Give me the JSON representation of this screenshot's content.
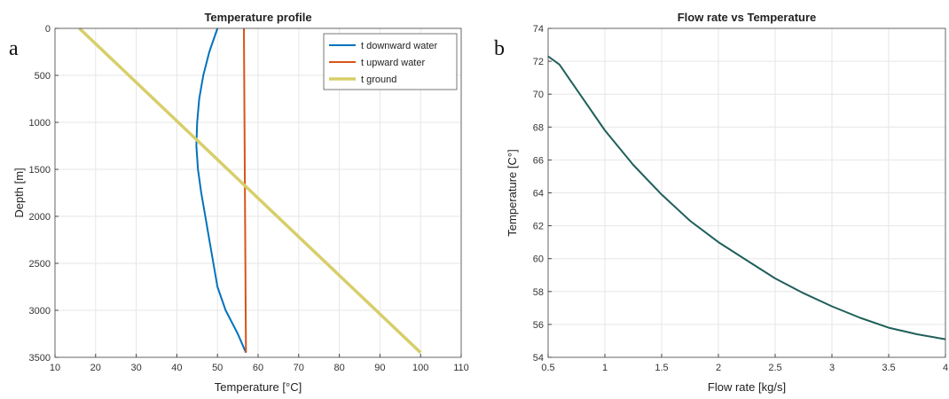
{
  "panels": {
    "a": "a",
    "b": "b"
  },
  "chart_data": [
    {
      "type": "line",
      "title": "Temperature profile",
      "xlabel": "Temperature [°C]",
      "ylabel": "Depth [m]",
      "xlim": [
        10,
        110
      ],
      "ylim": [
        0,
        3500
      ],
      "y_reversed": true,
      "grid": true,
      "legend_position": "top-right",
      "x_ticks": [
        10,
        20,
        30,
        40,
        50,
        60,
        70,
        80,
        90,
        100,
        110
      ],
      "y_ticks": [
        0,
        500,
        1000,
        1500,
        2000,
        2500,
        3000,
        3500
      ],
      "series": [
        {
          "name": "t downward water",
          "color": "#0072BD",
          "points": [
            [
              50,
              0
            ],
            [
              48,
              250
            ],
            [
              46.5,
              500
            ],
            [
              45.5,
              750
            ],
            [
              45,
              1000
            ],
            [
              44.8,
              1250
            ],
            [
              45.2,
              1500
            ],
            [
              46,
              1750
            ],
            [
              47,
              2000
            ],
            [
              48,
              2250
            ],
            [
              49,
              2500
            ],
            [
              50,
              2750
            ],
            [
              52,
              3000
            ],
            [
              55,
              3250
            ],
            [
              57,
              3450
            ]
          ]
        },
        {
          "name": "t upward water",
          "color": "#D95319",
          "points": [
            [
              56.5,
              0
            ],
            [
              57,
              3450
            ]
          ]
        },
        {
          "name": "t ground",
          "color": "#D8CE6A",
          "points": [
            [
              16,
              0
            ],
            [
              100,
              3450
            ]
          ]
        }
      ]
    },
    {
      "type": "line",
      "title": "Flow rate vs Temperature",
      "xlabel": "Flow rate [kg/s]",
      "ylabel": "Temperature [C°]",
      "xlim": [
        0.5,
        4
      ],
      "ylim": [
        54,
        74
      ],
      "grid": true,
      "x_ticks": [
        0.5,
        1,
        1.5,
        2,
        2.5,
        3,
        3.5,
        4
      ],
      "y_ticks": [
        54,
        56,
        58,
        60,
        62,
        64,
        66,
        68,
        70,
        72,
        74
      ],
      "series": [
        {
          "color": "#1f5f5a",
          "points": [
            [
              0.5,
              72.3
            ],
            [
              0.6,
              71.8
            ],
            [
              0.7,
              70.8
            ],
            [
              0.8,
              69.8
            ],
            [
              0.9,
              68.8
            ],
            [
              1.0,
              67.8
            ],
            [
              1.25,
              65.7
            ],
            [
              1.5,
              63.9
            ],
            [
              1.75,
              62.3
            ],
            [
              2.0,
              61.0
            ],
            [
              2.25,
              59.9
            ],
            [
              2.5,
              58.8
            ],
            [
              2.75,
              57.9
            ],
            [
              3.0,
              57.1
            ],
            [
              3.25,
              56.4
            ],
            [
              3.5,
              55.8
            ],
            [
              3.75,
              55.4
            ],
            [
              4.0,
              55.1
            ]
          ]
        }
      ]
    }
  ]
}
